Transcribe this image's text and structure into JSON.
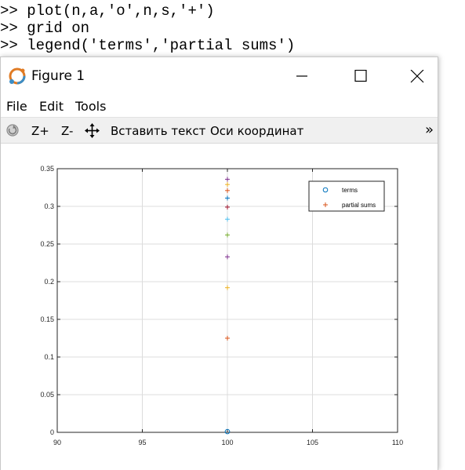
{
  "console": {
    "lines": [
      ">> plot(n,a,'o',n,s,'+')",
      ">> grid on",
      ">> legend('terms','partial sums')"
    ]
  },
  "window": {
    "title": "Figure 1",
    "minimize_icon": "minimize-icon",
    "maximize_icon": "maximize-icon",
    "close_icon": "close-icon"
  },
  "menu": {
    "file": "File",
    "edit": "Edit",
    "tools": "Tools"
  },
  "toolbar": {
    "rotate_icon": "rotate-icon",
    "zoom_in": "Z+",
    "zoom_out": "Z-",
    "pan_icon": "pan-icon",
    "insert_text": "Вставить текст",
    "axes": "Оси координат",
    "more": "»"
  },
  "chart_data": {
    "type": "scatter",
    "title": "",
    "xlabel": "",
    "ylabel": "",
    "xlim": [
      90,
      110
    ],
    "ylim": [
      0,
      0.35
    ],
    "grid": true,
    "xticks": [
      "90",
      "95",
      "100",
      "105",
      "110"
    ],
    "yticks": [
      "0",
      "0.05",
      "0.1",
      "0.15",
      "0.2",
      "0.25",
      "0.3",
      "0.35"
    ],
    "legend": {
      "placement": "top-right",
      "entries": [
        {
          "label": "terms",
          "marker": "o",
          "color": "#0072bd"
        },
        {
          "label": "partial sums",
          "marker": "+",
          "color": "#d95319"
        }
      ]
    },
    "series": [
      {
        "name": "terms",
        "marker": "o",
        "points": [
          {
            "x": 100,
            "y": 0.001,
            "color": "#0072bd"
          }
        ]
      },
      {
        "name": "partial sums",
        "marker": "+",
        "points": [
          {
            "x": 100,
            "y": 0.125,
            "color": "#d95319"
          },
          {
            "x": 100,
            "y": 0.192,
            "color": "#edb120"
          },
          {
            "x": 100,
            "y": 0.233,
            "color": "#7e2f8e"
          },
          {
            "x": 100,
            "y": 0.262,
            "color": "#77ac30"
          },
          {
            "x": 100,
            "y": 0.283,
            "color": "#4dbeee"
          },
          {
            "x": 100,
            "y": 0.299,
            "color": "#a2142f"
          },
          {
            "x": 100,
            "y": 0.311,
            "color": "#0072bd"
          },
          {
            "x": 100,
            "y": 0.321,
            "color": "#d95319"
          },
          {
            "x": 100,
            "y": 0.329,
            "color": "#edb120"
          },
          {
            "x": 100,
            "y": 0.336,
            "color": "#7e2f8e"
          }
        ]
      }
    ]
  }
}
